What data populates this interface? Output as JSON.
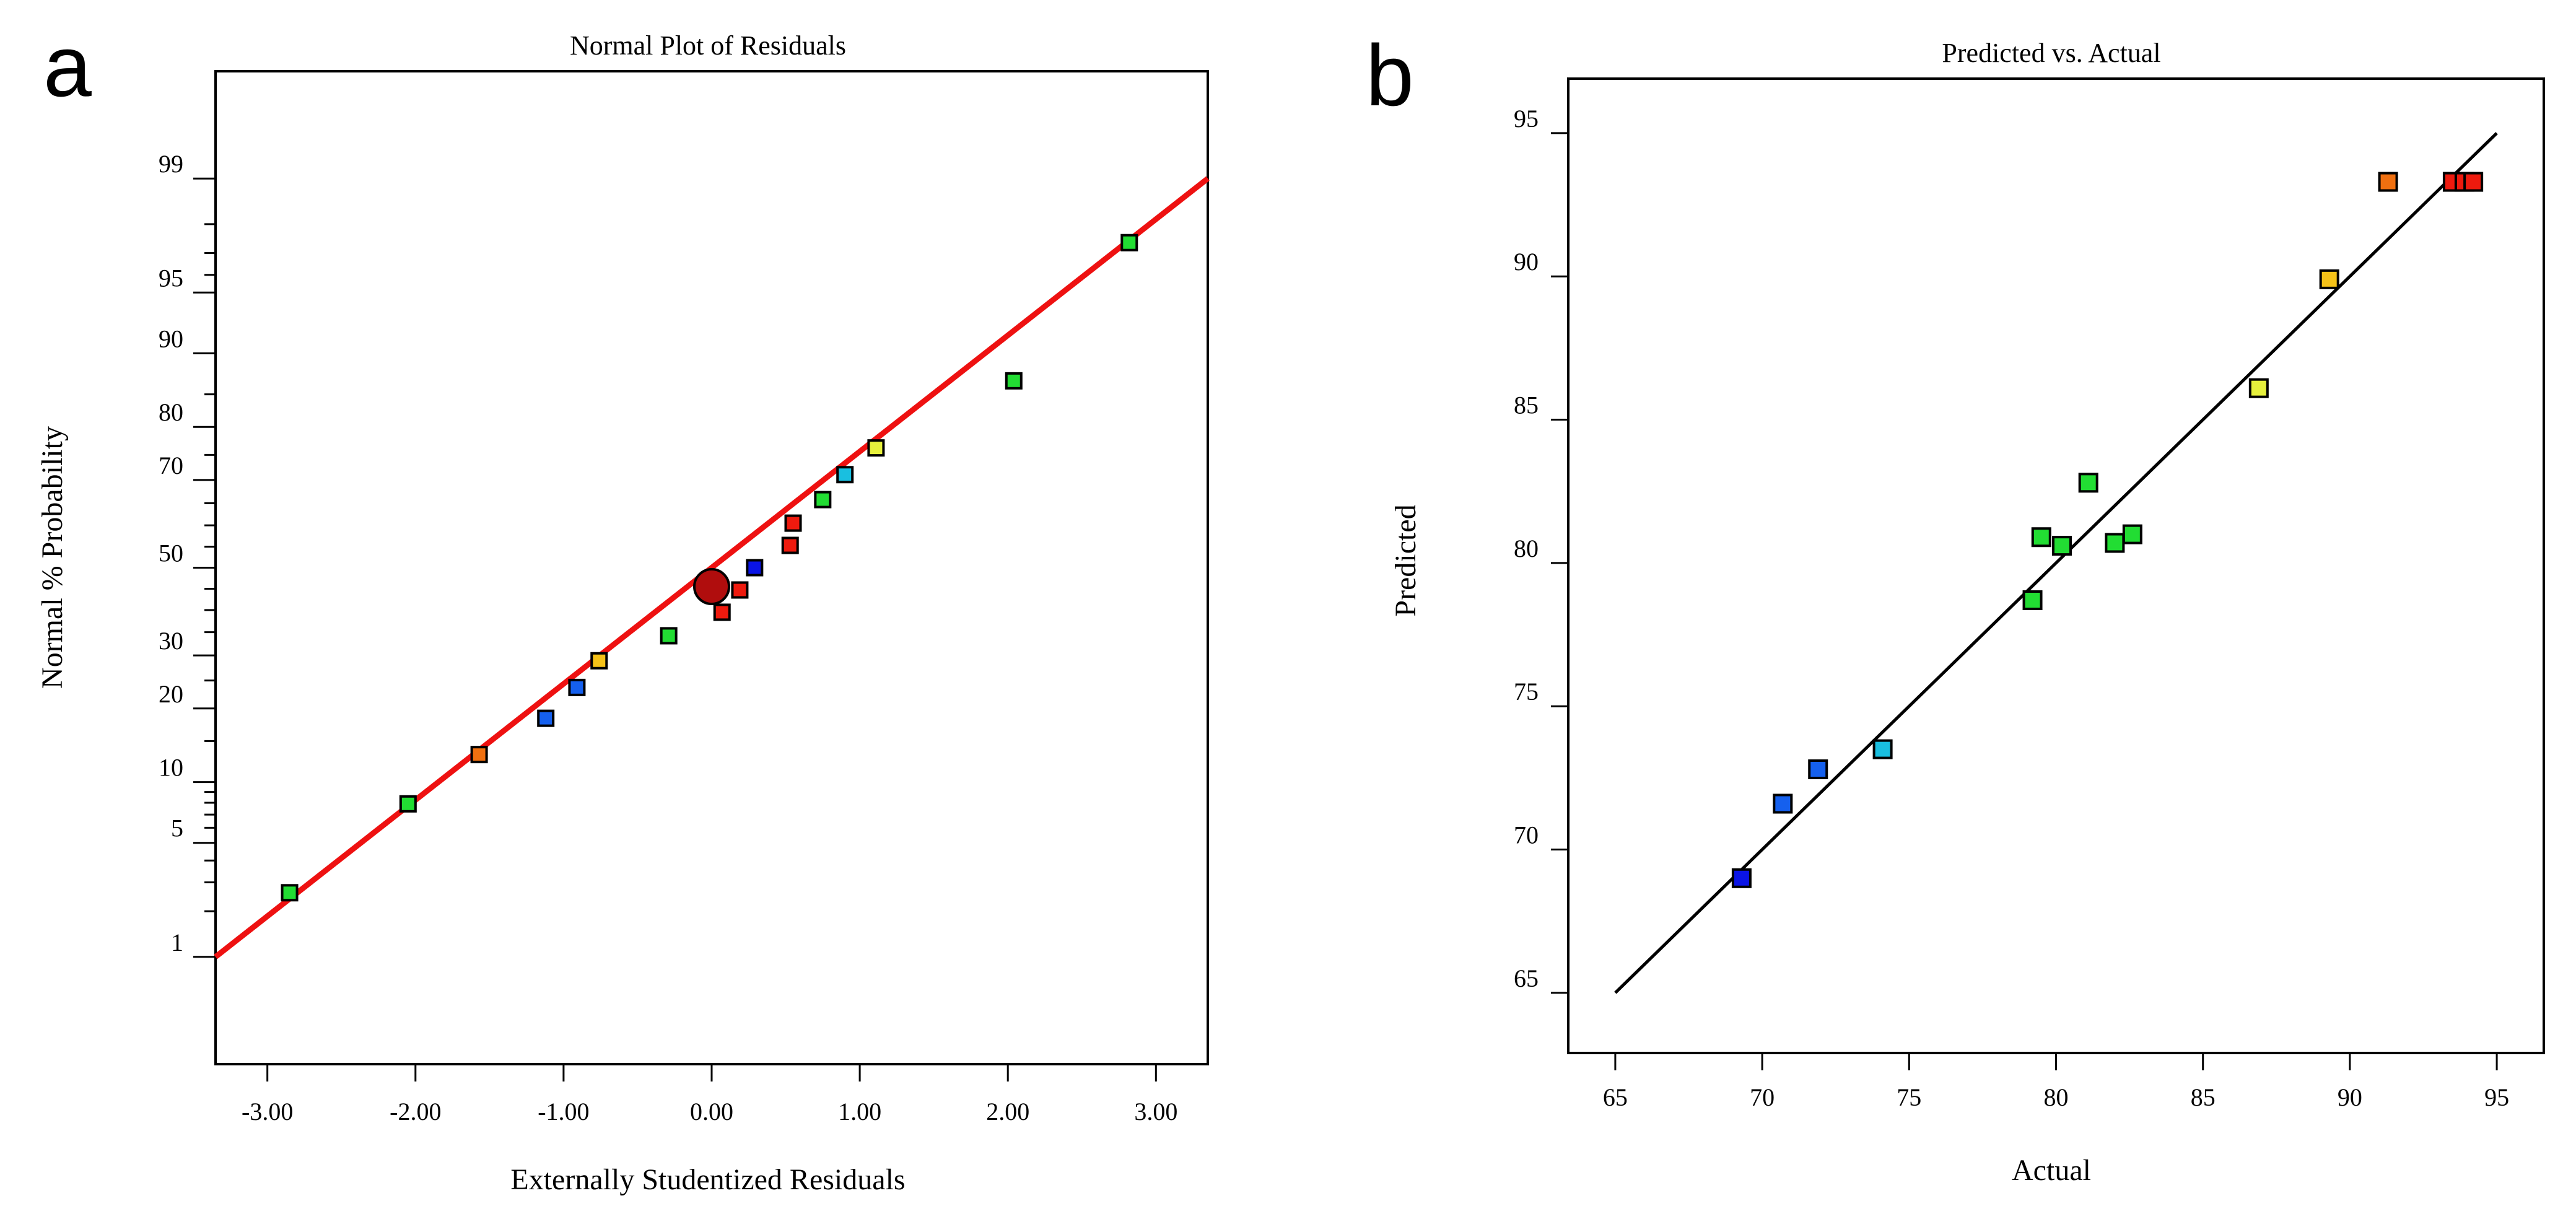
{
  "figure": {
    "panels": [
      "a",
      "b"
    ],
    "colors": {
      "green": "#22dd33",
      "blue_dark": "#0a14e6",
      "blue": "#1560ee",
      "cyan": "#19bfe0",
      "yellow": "#e6f03c",
      "gold": "#f5c218",
      "orange": "#f07010",
      "red": "#ee1a0e",
      "dark_red": "#b00d0d",
      "fit_line_a": "#ee1111",
      "fit_line_b": "#000000"
    }
  },
  "chart_data": [
    {
      "panel": "a",
      "type": "scatter",
      "title": "Normal Plot of Residuals",
      "xlabel": "Externally Studentized Residuals",
      "ylabel": "Normal % Probability",
      "xlim": [
        -3.35,
        3.35
      ],
      "ylim_probability": [
        0.15,
        99.85
      ],
      "x_ticks": [
        -3,
        -2,
        -1,
        0,
        1,
        2,
        3
      ],
      "x_tick_labels": [
        "-3.00",
        "-2.00",
        "-1.00",
        "0.00",
        "1.00",
        "2.00",
        "3.00"
      ],
      "y_ticks": [
        1,
        5,
        10,
        20,
        30,
        50,
        70,
        80,
        90,
        95,
        99
      ],
      "y_tick_labels": [
        "1",
        "5",
        "10",
        "20",
        "30",
        "50",
        "70",
        "80",
        "90",
        "95",
        "99"
      ],
      "y_minor_probabilities": [
        2,
        3,
        4,
        6,
        7,
        8,
        9,
        15,
        25,
        35,
        40,
        45,
        55,
        60,
        65,
        75,
        85,
        96,
        97,
        98
      ],
      "fit_line": {
        "x": [
          -3.35,
          3.35
        ],
        "prob": [
          1.0,
          99.0
        ]
      },
      "points": [
        {
          "x": -2.85,
          "prob": 2.6,
          "color": "green"
        },
        {
          "x": -2.05,
          "prob": 7.9,
          "color": "green"
        },
        {
          "x": -1.57,
          "prob": 13.2,
          "color": "orange"
        },
        {
          "x": -1.12,
          "prob": 18.4,
          "color": "blue"
        },
        {
          "x": -0.91,
          "prob": 23.7,
          "color": "blue"
        },
        {
          "x": -0.76,
          "prob": 28.9,
          "color": "gold"
        },
        {
          "x": -0.29,
          "prob": 34.2,
          "color": "green"
        },
        {
          "x": 0.07,
          "prob": 39.5,
          "color": "red"
        },
        {
          "x": 0.19,
          "prob": 44.7,
          "color": "red"
        },
        {
          "x": 0.29,
          "prob": 50.0,
          "color": "blue_dark"
        },
        {
          "x": 0.53,
          "prob": 55.3,
          "color": "red"
        },
        {
          "x": 0.55,
          "prob": 60.5,
          "color": "red"
        },
        {
          "x": 0.75,
          "prob": 65.8,
          "color": "green"
        },
        {
          "x": 0.9,
          "prob": 71.1,
          "color": "cyan"
        },
        {
          "x": 1.11,
          "prob": 76.3,
          "color": "yellow"
        },
        {
          "x": 2.04,
          "prob": 86.8,
          "color": "green"
        },
        {
          "x": 2.82,
          "prob": 97.4,
          "color": "green"
        }
      ],
      "highlight_point": {
        "x": 0.0,
        "prob": 45.5,
        "color": "dark_red"
      }
    },
    {
      "panel": "b",
      "type": "scatter",
      "title": "Predicted vs. Actual",
      "xlabel": "Actual",
      "ylabel": "Predicted",
      "xlim": [
        63.4,
        96.6
      ],
      "ylim": [
        62.9,
        96.9
      ],
      "x_ticks": [
        65,
        70,
        75,
        80,
        85,
        90,
        95
      ],
      "x_tick_labels": [
        "65",
        "70",
        "75",
        "80",
        "85",
        "90",
        "95"
      ],
      "y_ticks": [
        65,
        70,
        75,
        80,
        85,
        90,
        95
      ],
      "y_tick_labels": [
        "65",
        "70",
        "75",
        "80",
        "85",
        "90",
        "95"
      ],
      "fit_line": {
        "x": [
          65,
          95
        ],
        "y": [
          65,
          95
        ]
      },
      "points": [
        {
          "x": 69.3,
          "y": 69.0,
          "color": "blue_dark"
        },
        {
          "x": 70.7,
          "y": 71.6,
          "color": "blue"
        },
        {
          "x": 71.9,
          "y": 72.8,
          "color": "blue"
        },
        {
          "x": 74.1,
          "y": 73.5,
          "color": "cyan"
        },
        {
          "x": 79.2,
          "y": 78.7,
          "color": "green"
        },
        {
          "x": 79.5,
          "y": 80.9,
          "color": "green"
        },
        {
          "x": 80.2,
          "y": 80.6,
          "color": "green"
        },
        {
          "x": 81.1,
          "y": 82.8,
          "color": "green"
        },
        {
          "x": 82.0,
          "y": 80.7,
          "color": "green"
        },
        {
          "x": 82.6,
          "y": 81.0,
          "color": "green"
        },
        {
          "x": 86.9,
          "y": 86.1,
          "color": "yellow"
        },
        {
          "x": 89.3,
          "y": 89.9,
          "color": "gold"
        },
        {
          "x": 91.3,
          "y": 93.3,
          "color": "orange"
        },
        {
          "x": 93.5,
          "y": 93.3,
          "color": "red"
        },
        {
          "x": 93.9,
          "y": 93.3,
          "color": "red"
        },
        {
          "x": 94.2,
          "y": 93.3,
          "color": "red"
        }
      ]
    }
  ]
}
